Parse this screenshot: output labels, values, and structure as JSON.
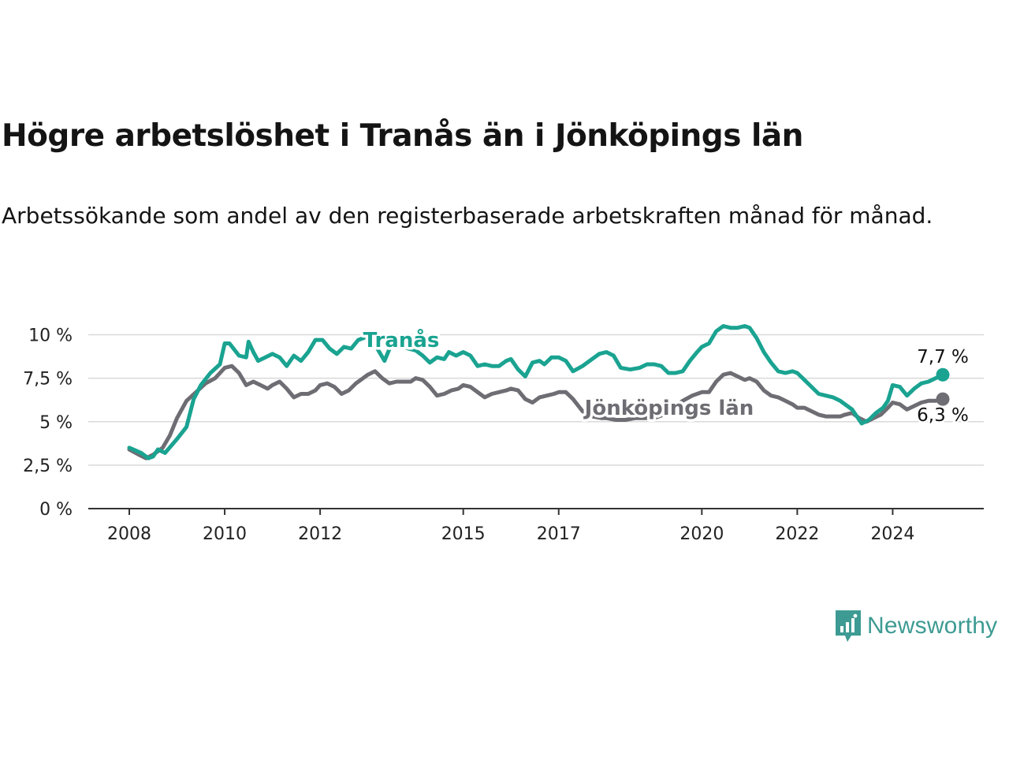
{
  "title": "Högre arbetslöshet i Tranås än i Jönköpings län",
  "subtitle": "Arbetssökande som andel av den registerbaserade arbetskraften månad för månad.",
  "brand": {
    "name": "Newsworthy",
    "color": "#3d9b93"
  },
  "chart_data": {
    "type": "line",
    "title": "Högre arbetslöshet i Tranås än i Jönköpings län",
    "subtitle": "Arbetssökande som andel av den registerbaserade arbetskraften månad för månad.",
    "xlabel": "",
    "ylabel": "",
    "x_range": [
      2008,
      2024.5
    ],
    "ylim": [
      0,
      10.5
    ],
    "y_ticks": [
      0,
      2.5,
      5,
      7.5,
      10
    ],
    "y_tick_labels": [
      "0 %",
      "2,5 %",
      "5 %",
      "7,5 %",
      "10 %"
    ],
    "x_ticks": [
      2008,
      2010,
      2012,
      2015,
      2017,
      2020,
      2022,
      2024
    ],
    "x_tick_labels": [
      "2008",
      "2010",
      "2012",
      "2015",
      "2017",
      "2020",
      "2022",
      "2024"
    ],
    "grid": "horizontal",
    "legend": "inline labels",
    "series": [
      {
        "name": "Tranås",
        "color": "#1aa391",
        "end_label": "7,7 %",
        "points": [
          [
            2008.0,
            3.5
          ],
          [
            2008.25,
            3.2
          ],
          [
            2008.4,
            2.9
          ],
          [
            2008.5,
            3.0
          ],
          [
            2008.6,
            3.4
          ],
          [
            2008.75,
            3.2
          ],
          [
            2009.0,
            4.0
          ],
          [
            2009.2,
            4.7
          ],
          [
            2009.35,
            6.3
          ],
          [
            2009.5,
            7.1
          ],
          [
            2009.7,
            7.8
          ],
          [
            2009.9,
            8.3
          ],
          [
            2010.0,
            9.5
          ],
          [
            2010.1,
            9.5
          ],
          [
            2010.3,
            8.8
          ],
          [
            2010.45,
            8.7
          ],
          [
            2010.5,
            9.6
          ],
          [
            2010.6,
            9.0
          ],
          [
            2010.7,
            8.5
          ],
          [
            2010.85,
            8.7
          ],
          [
            2011.0,
            8.9
          ],
          [
            2011.15,
            8.7
          ],
          [
            2011.3,
            8.2
          ],
          [
            2011.45,
            8.8
          ],
          [
            2011.6,
            8.5
          ],
          [
            2011.75,
            9.0
          ],
          [
            2011.9,
            9.7
          ],
          [
            2012.05,
            9.7
          ],
          [
            2012.2,
            9.2
          ],
          [
            2012.35,
            8.9
          ],
          [
            2012.5,
            9.3
          ],
          [
            2012.65,
            9.2
          ],
          [
            2012.8,
            9.7
          ],
          [
            2013.0,
            9.9
          ],
          [
            2013.2,
            9.2
          ],
          [
            2013.35,
            8.5
          ],
          [
            2013.5,
            9.5
          ],
          [
            2013.7,
            9.4
          ],
          [
            2013.85,
            9.2
          ],
          [
            2014.0,
            9.1
          ],
          [
            2014.15,
            8.8
          ],
          [
            2014.3,
            8.4
          ],
          [
            2014.45,
            8.7
          ],
          [
            2014.6,
            8.6
          ],
          [
            2014.7,
            9.0
          ],
          [
            2014.85,
            8.8
          ],
          [
            2015.0,
            9.0
          ],
          [
            2015.15,
            8.8
          ],
          [
            2015.3,
            8.2
          ],
          [
            2015.45,
            8.3
          ],
          [
            2015.6,
            8.2
          ],
          [
            2015.75,
            8.2
          ],
          [
            2015.9,
            8.5
          ],
          [
            2016.0,
            8.6
          ],
          [
            2016.15,
            8.0
          ],
          [
            2016.3,
            7.6
          ],
          [
            2016.45,
            8.4
          ],
          [
            2016.6,
            8.5
          ],
          [
            2016.7,
            8.3
          ],
          [
            2016.85,
            8.7
          ],
          [
            2017.0,
            8.7
          ],
          [
            2017.15,
            8.5
          ],
          [
            2017.3,
            7.9
          ],
          [
            2017.5,
            8.2
          ],
          [
            2017.7,
            8.6
          ],
          [
            2017.85,
            8.9
          ],
          [
            2018.0,
            9.0
          ],
          [
            2018.15,
            8.8
          ],
          [
            2018.3,
            8.1
          ],
          [
            2018.5,
            8.0
          ],
          [
            2018.7,
            8.1
          ],
          [
            2018.85,
            8.3
          ],
          [
            2019.0,
            8.3
          ],
          [
            2019.15,
            8.2
          ],
          [
            2019.3,
            7.8
          ],
          [
            2019.45,
            7.8
          ],
          [
            2019.6,
            7.9
          ],
          [
            2019.75,
            8.5
          ],
          [
            2019.9,
            9.0
          ],
          [
            2020.0,
            9.3
          ],
          [
            2020.15,
            9.5
          ],
          [
            2020.3,
            10.2
          ],
          [
            2020.45,
            10.5
          ],
          [
            2020.6,
            10.4
          ],
          [
            2020.75,
            10.4
          ],
          [
            2020.9,
            10.5
          ],
          [
            2021.0,
            10.4
          ],
          [
            2021.15,
            9.8
          ],
          [
            2021.3,
            9.0
          ],
          [
            2021.45,
            8.4
          ],
          [
            2021.6,
            7.9
          ],
          [
            2021.75,
            7.8
          ],
          [
            2021.9,
            7.9
          ],
          [
            2022.0,
            7.8
          ],
          [
            2022.15,
            7.4
          ],
          [
            2022.3,
            7.0
          ],
          [
            2022.45,
            6.6
          ],
          [
            2022.6,
            6.5
          ],
          [
            2022.75,
            6.4
          ],
          [
            2022.9,
            6.2
          ],
          [
            2023.0,
            6.0
          ],
          [
            2023.15,
            5.7
          ],
          [
            2023.25,
            5.3
          ],
          [
            2023.35,
            4.9
          ],
          [
            2023.5,
            5.1
          ],
          [
            2023.65,
            5.5
          ],
          [
            2023.8,
            5.8
          ],
          [
            2023.9,
            6.2
          ],
          [
            2024.0,
            7.1
          ],
          [
            2024.15,
            7.0
          ],
          [
            2024.3,
            6.5
          ],
          [
            2024.45,
            6.9
          ],
          [
            2024.6,
            7.2
          ],
          [
            2024.75,
            7.3
          ],
          [
            2024.9,
            7.5
          ],
          [
            2025.05,
            7.7
          ]
        ]
      },
      {
        "name": "Jönköpings län",
        "color": "#6e6d73",
        "end_label": "6,3 %",
        "points": [
          [
            2008.0,
            3.4
          ],
          [
            2008.2,
            3.1
          ],
          [
            2008.35,
            2.9
          ],
          [
            2008.5,
            3.1
          ],
          [
            2008.7,
            3.5
          ],
          [
            2008.85,
            4.2
          ],
          [
            2009.0,
            5.2
          ],
          [
            2009.2,
            6.2
          ],
          [
            2009.4,
            6.7
          ],
          [
            2009.6,
            7.2
          ],
          [
            2009.8,
            7.5
          ],
          [
            2010.0,
            8.1
          ],
          [
            2010.15,
            8.2
          ],
          [
            2010.3,
            7.8
          ],
          [
            2010.45,
            7.1
          ],
          [
            2010.6,
            7.3
          ],
          [
            2010.75,
            7.1
          ],
          [
            2010.9,
            6.9
          ],
          [
            2011.0,
            7.1
          ],
          [
            2011.15,
            7.3
          ],
          [
            2011.3,
            6.9
          ],
          [
            2011.45,
            6.4
          ],
          [
            2011.6,
            6.6
          ],
          [
            2011.75,
            6.6
          ],
          [
            2011.9,
            6.8
          ],
          [
            2012.0,
            7.1
          ],
          [
            2012.15,
            7.2
          ],
          [
            2012.3,
            7.0
          ],
          [
            2012.45,
            6.6
          ],
          [
            2012.6,
            6.8
          ],
          [
            2012.75,
            7.2
          ],
          [
            2012.9,
            7.5
          ],
          [
            2013.0,
            7.7
          ],
          [
            2013.15,
            7.9
          ],
          [
            2013.3,
            7.5
          ],
          [
            2013.45,
            7.2
          ],
          [
            2013.6,
            7.3
          ],
          [
            2013.75,
            7.3
          ],
          [
            2013.9,
            7.3
          ],
          [
            2014.0,
            7.5
          ],
          [
            2014.15,
            7.4
          ],
          [
            2014.3,
            7.0
          ],
          [
            2014.45,
            6.5
          ],
          [
            2014.6,
            6.6
          ],
          [
            2014.75,
            6.8
          ],
          [
            2014.9,
            6.9
          ],
          [
            2015.0,
            7.1
          ],
          [
            2015.15,
            7.0
          ],
          [
            2015.3,
            6.7
          ],
          [
            2015.45,
            6.4
          ],
          [
            2015.6,
            6.6
          ],
          [
            2015.75,
            6.7
          ],
          [
            2015.9,
            6.8
          ],
          [
            2016.0,
            6.9
          ],
          [
            2016.15,
            6.8
          ],
          [
            2016.3,
            6.3
          ],
          [
            2016.45,
            6.1
          ],
          [
            2016.6,
            6.4
          ],
          [
            2016.75,
            6.5
          ],
          [
            2016.9,
            6.6
          ],
          [
            2017.0,
            6.7
          ],
          [
            2017.15,
            6.7
          ],
          [
            2017.3,
            6.3
          ],
          [
            2017.5,
            5.6
          ],
          [
            2017.7,
            5.3
          ],
          [
            2017.9,
            5.2
          ],
          [
            2018.0,
            5.2
          ],
          [
            2018.2,
            5.1
          ],
          [
            2018.4,
            5.1
          ],
          [
            2018.6,
            5.2
          ],
          [
            2018.8,
            5.2
          ],
          [
            2019.0,
            5.2
          ],
          [
            2019.2,
            5.4
          ],
          [
            2019.4,
            5.8
          ],
          [
            2019.6,
            6.2
          ],
          [
            2019.8,
            6.5
          ],
          [
            2020.0,
            6.7
          ],
          [
            2020.15,
            6.7
          ],
          [
            2020.3,
            7.3
          ],
          [
            2020.45,
            7.7
          ],
          [
            2020.6,
            7.8
          ],
          [
            2020.75,
            7.6
          ],
          [
            2020.9,
            7.4
          ],
          [
            2021.0,
            7.5
          ],
          [
            2021.15,
            7.3
          ],
          [
            2021.3,
            6.8
          ],
          [
            2021.45,
            6.5
          ],
          [
            2021.6,
            6.4
          ],
          [
            2021.75,
            6.2
          ],
          [
            2021.9,
            6.0
          ],
          [
            2022.0,
            5.8
          ],
          [
            2022.15,
            5.8
          ],
          [
            2022.3,
            5.6
          ],
          [
            2022.45,
            5.4
          ],
          [
            2022.6,
            5.3
          ],
          [
            2022.75,
            5.3
          ],
          [
            2022.9,
            5.3
          ],
          [
            2023.0,
            5.4
          ],
          [
            2023.15,
            5.5
          ],
          [
            2023.3,
            5.2
          ],
          [
            2023.45,
            5.0
          ],
          [
            2023.6,
            5.2
          ],
          [
            2023.75,
            5.4
          ],
          [
            2023.9,
            5.8
          ],
          [
            2024.0,
            6.1
          ],
          [
            2024.15,
            6.0
          ],
          [
            2024.3,
            5.7
          ],
          [
            2024.45,
            5.9
          ],
          [
            2024.6,
            6.1
          ],
          [
            2024.75,
            6.2
          ],
          [
            2024.9,
            6.2
          ],
          [
            2025.05,
            6.3
          ]
        ]
      }
    ]
  }
}
